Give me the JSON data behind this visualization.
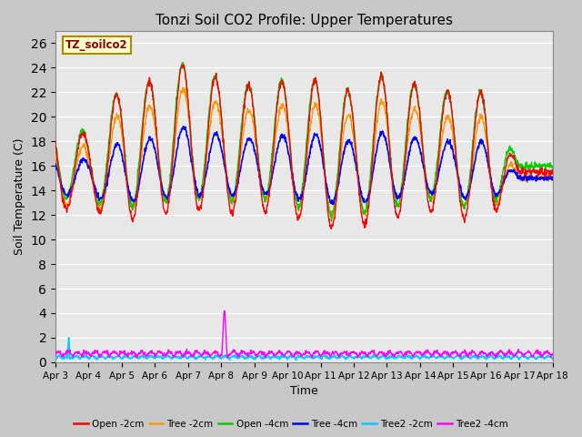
{
  "title": "Tonzi Soil CO2 Profile: Upper Temperatures",
  "xlabel": "Time",
  "ylabel": "Soil Temperature (C)",
  "ylim": [
    0,
    27
  ],
  "yticks": [
    0,
    2,
    4,
    6,
    8,
    10,
    12,
    14,
    16,
    18,
    20,
    22,
    24,
    26
  ],
  "x_tick_labels": [
    "Apr 3",
    "Apr 4",
    "Apr 5",
    "Apr 6",
    "Apr 7",
    "Apr 8",
    "Apr 9",
    "Apr 10",
    "Apr 11",
    "Apr 12",
    "Apr 13",
    "Apr 14",
    "Apr 15",
    "Apr 16",
    "Apr 17",
    "Apr 18"
  ],
  "legend_label": "TZ_soilco2",
  "legend_box_color": "#ffffcc",
  "legend_box_edge": "#aa8800",
  "series_colors": {
    "open_2cm": "#ff0000",
    "tree_2cm": "#ff9900",
    "open_4cm": "#00cc00",
    "tree_4cm": "#0000ff",
    "tree2_2cm": "#00ccff",
    "tree2_4cm": "#ff00ff"
  },
  "legend_entries": [
    {
      "label": "Open -2cm",
      "color": "#ff0000"
    },
    {
      "label": "Tree -2cm",
      "color": "#ff9900"
    },
    {
      "label": "Open -4cm",
      "color": "#00cc00"
    },
    {
      "label": "Tree -4cm",
      "color": "#0000ff"
    },
    {
      "label": "Tree2 -2cm",
      "color": "#00ccff"
    },
    {
      "label": "Tree2 -4cm",
      "color": "#ff00ff"
    }
  ],
  "bg_color": "#e8e8e8",
  "fig_bg": "#c8c8c8"
}
